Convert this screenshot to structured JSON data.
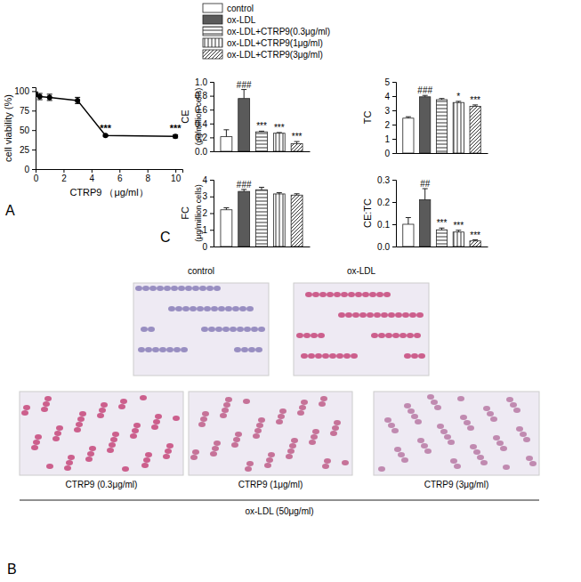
{
  "chart_data": [
    {
      "type": "line",
      "panel": "A",
      "xlabel": "CTRP9 （μg/ml）",
      "ylabel": "cell viability (%)",
      "x": [
        0,
        0.3,
        1,
        3,
        5,
        10
      ],
      "values": [
        96,
        93,
        92,
        88,
        43,
        42
      ],
      "errors": [
        3,
        4,
        4,
        4,
        1,
        2
      ],
      "significance": [
        null,
        null,
        null,
        null,
        "***",
        "***"
      ],
      "color": "#000000",
      "marker": "circle",
      "xlim": [
        0,
        10.5
      ],
      "xticks": [
        0,
        2,
        4,
        6,
        8,
        10
      ],
      "ylim": [
        0,
        105
      ],
      "yticks": [
        0,
        25,
        50,
        75,
        100
      ]
    },
    {
      "type": "bar",
      "ylabel": "CE",
      "yunit": "(μg/million cells)",
      "legend": "top",
      "tick_labels": "y",
      "categories": [
        "control",
        "ox-LDL",
        "ox-LDL+CTRP9(0.3μg/ml)",
        "ox-LDL+CTRP9(1μg/ml)",
        "ox-LDL+CTRP9(3μg/ml)"
      ],
      "values": [
        0.21,
        0.76,
        0.28,
        0.26,
        0.11
      ],
      "errors": [
        0.1,
        0.13,
        0.01,
        0.01,
        0.03
      ],
      "significance": [
        null,
        "###",
        "***",
        "***",
        "***"
      ],
      "colors": [
        "#ffffff",
        "#5a5a5a",
        "#ffffff",
        "#ffffff",
        "#ffffff"
      ],
      "ylim": [
        0,
        1.0
      ],
      "yticks": [
        {
          "value": 0,
          "label": "0.0"
        },
        0.2,
        0.4,
        0.6,
        0.8,
        {
          "value": 1,
          "label": "1.0"
        }
      ]
    },
    {
      "type": "bar",
      "ylabel": "TC",
      "tick_labels": "y",
      "categories": [
        "control",
        "ox-LDL",
        "ox-LDL+CTRP9(0.3μg/ml)",
        "ox-LDL+CTRP9(1μg/ml)",
        "ox-LDL+CTRP9(3μg/ml)"
      ],
      "values": [
        2.45,
        3.95,
        3.75,
        3.55,
        3.28
      ],
      "errors": [
        0.1,
        0.1,
        0.08,
        0.08,
        0.1
      ],
      "significance": [
        null,
        "###",
        null,
        "*",
        "***"
      ],
      "colors": [
        "#ffffff",
        "#5a5a5a",
        "#ffffff",
        "#ffffff",
        "#ffffff"
      ],
      "ylim": [
        0,
        5
      ],
      "yticks": [
        0,
        1,
        2,
        3,
        4,
        5
      ]
    },
    {
      "type": "bar",
      "panel": "C",
      "ylabel": "FC",
      "yunit": "(μg/million cells)",
      "tick_labels": "y",
      "categories": [
        "control",
        "ox-LDL",
        "ox-LDL+CTRP9(0.3μg/ml)",
        "ox-LDL+CTRP9(1μg/ml)",
        "ox-LDL+CTRP9(3μg/ml)"
      ],
      "values": [
        2.2,
        3.3,
        3.4,
        3.15,
        3.08
      ],
      "errors": [
        0.12,
        0.12,
        0.15,
        0.08,
        0.08
      ],
      "significance": [
        null,
        "###",
        null,
        null,
        null
      ],
      "colors": [
        "#ffffff",
        "#5a5a5a",
        "#ffffff",
        "#ffffff",
        "#ffffff"
      ],
      "ylim": [
        0,
        4
      ],
      "yticks": [
        0,
        1,
        2,
        3,
        4
      ]
    },
    {
      "type": "bar",
      "ylabel": "CE:TC",
      "tick_labels": "y",
      "categories": [
        "control",
        "ox-LDL",
        "ox-LDL+CTRP9(0.3μg/ml)",
        "ox-LDL+CTRP9(1μg/ml)",
        "ox-LDL+CTRP9(3μg/ml)"
      ],
      "values": [
        0.1,
        0.21,
        0.075,
        0.065,
        0.025
      ],
      "errors": [
        0.03,
        0.05,
        0.008,
        0.008,
        0.005
      ],
      "significance": [
        null,
        "##",
        "***",
        "***",
        "***"
      ],
      "colors": [
        "#ffffff",
        "#5a5a5a",
        "#ffffff",
        "#ffffff",
        "#ffffff"
      ],
      "ylim": [
        0,
        0.3
      ],
      "yticks": [
        {
          "value": 0,
          "label": "0.0"
        },
        0.1,
        0.2,
        0.3
      ]
    }
  ],
  "panel_b": {
    "label": "B",
    "images": [
      "control",
      "ox-LDL",
      "CTRP9 (0.3μg/ml)",
      "CTRP9 (1μg/ml)",
      "CTRP9 (3μg/ml)"
    ],
    "group_label": "ox-LDL (50μg/ml)"
  }
}
